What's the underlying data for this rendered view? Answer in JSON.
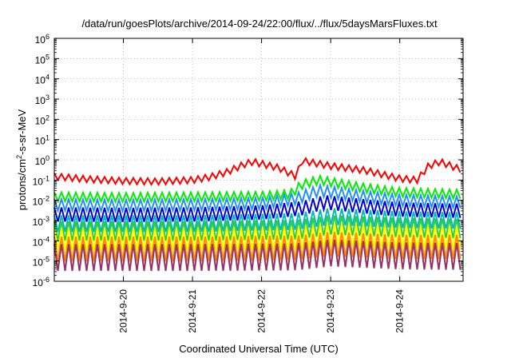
{
  "chart_data": {
    "type": "line",
    "title": "/data/run/goesPlots/archive/2014-09-24/22:00/flux/../flux/5daysMarsFluxes.txt",
    "xlabel": "Coordinated Universal Time (UTC)",
    "ylabel": "protons/cm2-s-sr-MeV",
    "ylabel_parts": {
      "pre": "protons/cm",
      "sup": "2",
      "post": "-s-sr-MeV"
    },
    "y_scale": "log",
    "ylim": [
      "1e-6",
      "1e6"
    ],
    "xlim": [
      "2014-09-19 00:00",
      "2014-09-24 22:00"
    ],
    "grid": true,
    "y_ticks": [
      {
        "base": "10",
        "exp": "-6",
        "value": "1e-6"
      },
      {
        "base": "10",
        "exp": "-5",
        "value": "1e-5"
      },
      {
        "base": "10",
        "exp": "-4",
        "value": "1e-4"
      },
      {
        "base": "10",
        "exp": "-3",
        "value": "1e-3"
      },
      {
        "base": "10",
        "exp": "-2",
        "value": "1e-2"
      },
      {
        "base": "10",
        "exp": "-1",
        "value": "1e-1"
      },
      {
        "base": "10",
        "exp": "0",
        "value": "1e0"
      },
      {
        "base": "10",
        "exp": "1",
        "value": "1e1"
      },
      {
        "base": "10",
        "exp": "2",
        "value": "1e2"
      },
      {
        "base": "10",
        "exp": "3",
        "value": "1e3"
      },
      {
        "base": "10",
        "exp": "4",
        "value": "1e4"
      },
      {
        "base": "10",
        "exp": "5",
        "value": "1e5"
      },
      {
        "base": "10",
        "exp": "6",
        "value": "1e6"
      }
    ],
    "x_ticks": [
      "2014-9-20",
      "2014-9-21",
      "2014-9-22",
      "2014-9-23",
      "2014-9-24"
    ],
    "series": [
      {
        "color": "#ff0000",
        "points": [
          [
            "2014-09-19 00:00",
            "0.15"
          ],
          [
            "2014-09-19 12:00",
            "0.11"
          ],
          [
            "2014-09-20 00:00",
            "0.09"
          ],
          [
            "2014-09-20 12:00",
            "0.085"
          ],
          [
            "2014-09-21 00:00",
            "0.10"
          ],
          [
            "2014-09-21 06:00",
            "0.14"
          ],
          [
            "2014-09-21 12:00",
            "0.25"
          ],
          [
            "2014-09-21 18:00",
            "0.60"
          ],
          [
            "2014-09-21 21:00",
            "0.80"
          ],
          [
            "2014-09-22 06:00",
            "0.40"
          ],
          [
            "2014-09-22 12:00",
            "0.15"
          ],
          [
            "2014-09-22 14:00",
            "0.90"
          ],
          [
            "2014-09-23 00:00",
            "0.50"
          ],
          [
            "2014-09-23 12:00",
            "0.30"
          ],
          [
            "2014-09-24 00:00",
            "0.12"
          ],
          [
            "2014-09-24 06:00",
            "0.10"
          ],
          [
            "2014-09-24 10:00",
            "0.50"
          ],
          [
            "2014-09-24 14:00",
            "0.80"
          ],
          [
            "2014-09-24 22:00",
            "0.30"
          ]
        ]
      },
      {
        "color": "#00ee00",
        "points": [
          [
            "2014-09-19 00:00",
            "0.015"
          ],
          [
            "2014-09-20 00:00",
            "0.014"
          ],
          [
            "2014-09-21 00:00",
            "0.015"
          ],
          [
            "2014-09-22 00:00",
            "0.016"
          ],
          [
            "2014-09-22 10:00",
            "0.020"
          ],
          [
            "2014-09-22 14:00",
            "0.06"
          ],
          [
            "2014-09-22 20:00",
            "0.10"
          ],
          [
            "2014-09-23 12:00",
            "0.04"
          ],
          [
            "2014-09-24 00:00",
            "0.025"
          ],
          [
            "2014-09-24 22:00",
            "0.020"
          ]
        ]
      },
      {
        "color": "#1e90ff",
        "points": [
          [
            "2014-09-19 00:00",
            "0.006"
          ],
          [
            "2014-09-20 00:00",
            "0.0055"
          ],
          [
            "2014-09-21 00:00",
            "0.006"
          ],
          [
            "2014-09-22 00:00",
            "0.007"
          ],
          [
            "2014-09-22 12:00",
            "0.012"
          ],
          [
            "2014-09-22 20:00",
            "0.030"
          ],
          [
            "2014-09-23 12:00",
            "0.015"
          ],
          [
            "2014-09-24 00:00",
            "0.010"
          ],
          [
            "2014-09-24 22:00",
            "0.008"
          ]
        ]
      },
      {
        "color": "#0000dd",
        "points": [
          [
            "2014-09-19 00:00",
            "0.002"
          ],
          [
            "2014-09-20 00:00",
            "0.0019"
          ],
          [
            "2014-09-21 00:00",
            "0.002"
          ],
          [
            "2014-09-22 00:00",
            "0.0025"
          ],
          [
            "2014-09-22 14:00",
            "0.004"
          ],
          [
            "2014-09-22 22:00",
            "0.008"
          ],
          [
            "2014-09-23 12:00",
            "0.005"
          ],
          [
            "2014-09-24 00:00",
            "0.0035"
          ],
          [
            "2014-09-24 22:00",
            "0.003"
          ]
        ]
      },
      {
        "color": "#00bbbb",
        "points": [
          [
            "2014-09-19 00:00",
            "0.0007"
          ],
          [
            "2014-09-21 00:00",
            "0.0007"
          ],
          [
            "2014-09-22 12:00",
            "0.0009"
          ],
          [
            "2014-09-23 00:00",
            "0.0016"
          ],
          [
            "2014-09-24 00:00",
            "0.0011"
          ],
          [
            "2014-09-24 22:00",
            "0.0010"
          ]
        ]
      },
      {
        "color": "#33cc33",
        "points": [
          [
            "2014-09-19 00:00",
            "0.0003"
          ],
          [
            "2014-09-21 00:00",
            "0.0003"
          ],
          [
            "2014-09-22 12:00",
            "0.00035"
          ],
          [
            "2014-09-23 00:00",
            "0.0006"
          ],
          [
            "2014-09-24 00:00",
            "0.00045"
          ],
          [
            "2014-09-24 22:00",
            "0.0004"
          ]
        ]
      },
      {
        "color": "#ffff00",
        "points": [
          [
            "2014-09-19 00:00",
            "0.00012"
          ],
          [
            "2014-09-21 00:00",
            "0.00012"
          ],
          [
            "2014-09-22 12:00",
            "0.00013"
          ],
          [
            "2014-09-23 00:00",
            "0.00020"
          ],
          [
            "2014-09-24 00:00",
            "0.00016"
          ],
          [
            "2014-09-24 22:00",
            "0.00015"
          ]
        ]
      },
      {
        "color": "#ff8800",
        "points": [
          [
            "2014-09-19 00:00",
            "0.00004"
          ],
          [
            "2014-09-21 00:00",
            "0.00004"
          ],
          [
            "2014-09-22 12:00",
            "0.000045"
          ],
          [
            "2014-09-23 00:00",
            "0.00007"
          ],
          [
            "2014-09-24 00:00",
            "0.00005"
          ],
          [
            "2014-09-24 22:00",
            "0.00005"
          ]
        ]
      },
      {
        "color": "#993366",
        "points": [
          [
            "2014-09-19 00:00",
            "0.000015"
          ],
          [
            "2014-09-21 00:00",
            "0.000015"
          ],
          [
            "2014-09-22 12:00",
            "0.000016"
          ],
          [
            "2014-09-23 00:00",
            "0.000025"
          ],
          [
            "2014-09-24 00:00",
            "0.000018"
          ],
          [
            "2014-09-24 22:00",
            "0.000017"
          ]
        ]
      }
    ]
  }
}
